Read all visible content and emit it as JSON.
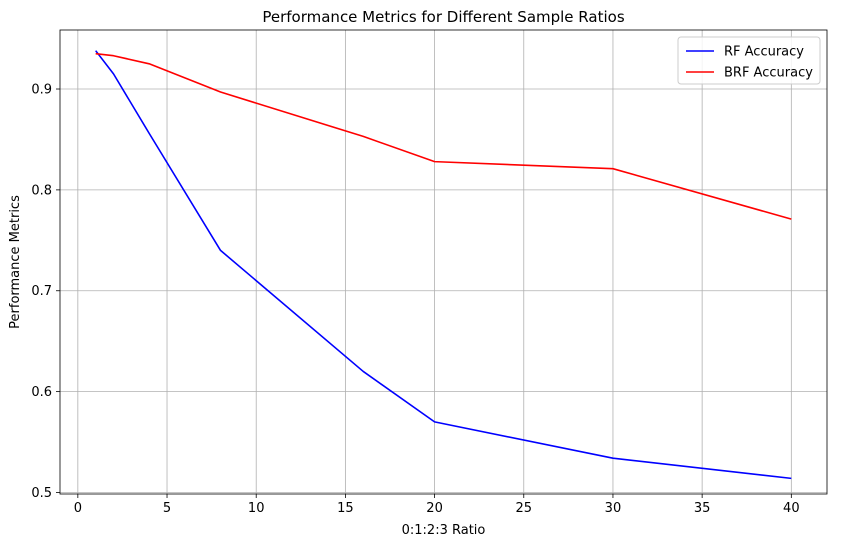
{
  "chart_data": {
    "type": "line",
    "title": "Performance Metrics for Different Sample Ratios",
    "xlabel": "0:1:2:3 Ratio",
    "ylabel": "Performance Metrics",
    "xlim": [
      -1,
      42
    ],
    "ylim": [
      0.4985,
      0.9585
    ],
    "x_ticks": [
      0,
      5,
      10,
      15,
      20,
      25,
      30,
      35,
      40
    ],
    "y_ticks": [
      0.5,
      0.6,
      0.7,
      0.8,
      0.9
    ],
    "y_tick_labels": [
      "0.5",
      "0.6",
      "0.7",
      "0.8",
      "0.9"
    ],
    "grid": true,
    "legend_position": "top-right",
    "series": [
      {
        "name": "RF Accuracy",
        "color": "#0000ff",
        "x": [
          1,
          2,
          4,
          8,
          16,
          20,
          30,
          40
        ],
        "values": [
          0.938,
          0.915,
          0.856,
          0.74,
          0.62,
          0.57,
          0.534,
          0.514
        ]
      },
      {
        "name": "BRF Accuracy",
        "color": "#ff0000",
        "x": [
          1,
          2,
          4,
          8,
          16,
          20,
          30,
          40
        ],
        "values": [
          0.935,
          0.933,
          0.925,
          0.897,
          0.853,
          0.828,
          0.821,
          0.771
        ]
      }
    ]
  }
}
